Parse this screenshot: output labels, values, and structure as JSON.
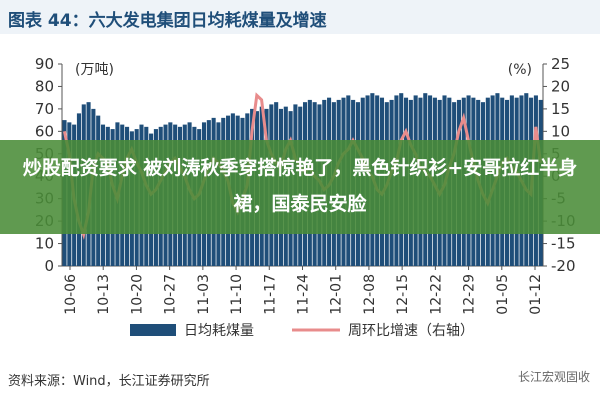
{
  "title": "图表 44：六大发电集团日均耗煤量及增速",
  "source": "资料来源：Wind，长江证券研究所",
  "watermark": "长江宏观固收",
  "overlay_text": "炒股配资要求 被刘涛秋季穿搭惊艳了，黑色针织衫+安哥拉红半身裙，国泰民安脸",
  "colors": {
    "bar": "#1f4e79",
    "line": "#e88c8c",
    "overlay": "#4a8c38"
  },
  "chart_data": {
    "type": "bar",
    "title": "",
    "y_left": {
      "unit": "(万吨)",
      "ylim": [
        0,
        90
      ],
      "ticks": [
        0,
        10,
        20,
        30,
        40,
        50,
        60,
        70,
        80,
        90
      ]
    },
    "y_right": {
      "unit": "(%)",
      "ylim": [
        -20,
        25
      ],
      "ticks": [
        -20,
        -15,
        -10,
        -5,
        0,
        5,
        10,
        15,
        20,
        25
      ]
    },
    "x_tick_labels": [
      "10-06",
      "10-13",
      "10-20",
      "10-27",
      "11-03",
      "11-10",
      "11-17",
      "11-24",
      "12-01",
      "12-08",
      "12-15",
      "12-22",
      "12-29",
      "01-05",
      "01-12"
    ],
    "series": [
      {
        "name": "日均耗煤量",
        "type": "bar",
        "axis": "left",
        "values": [
          65,
          64,
          63,
          68,
          72,
          73,
          70,
          67,
          63,
          62,
          61,
          64,
          63,
          62,
          60,
          61,
          63,
          62,
          59,
          61,
          62,
          63,
          64,
          63,
          62,
          63,
          64,
          62,
          61,
          64,
          65,
          66,
          64,
          66,
          67,
          68,
          67,
          66,
          68,
          70,
          69,
          71,
          70,
          72,
          73,
          70,
          71,
          69,
          72,
          71,
          73,
          74,
          73,
          72,
          74,
          75,
          73,
          74,
          75,
          76,
          74,
          73,
          75,
          76,
          77,
          76,
          75,
          73,
          74,
          76,
          77,
          75,
          74,
          76,
          75,
          77,
          76,
          75,
          74,
          76,
          75,
          73,
          74,
          75,
          76,
          75,
          74,
          73,
          75,
          76,
          77,
          75,
          74,
          76,
          75,
          76,
          77,
          75,
          76,
          74
        ]
      },
      {
        "name": "周环比增速（右轴）",
        "type": "line",
        "axis": "right",
        "values": [
          10,
          5,
          -5,
          -10,
          -13,
          -8,
          2,
          5,
          4,
          3,
          -2,
          -5,
          0,
          4,
          6,
          3,
          1,
          -2,
          -4,
          -3,
          -1,
          1,
          3,
          4,
          2,
          0,
          -3,
          -5,
          -4,
          -1,
          2,
          4,
          3,
          1,
          -1,
          -6,
          -8,
          -5,
          -2,
          10,
          18,
          17,
          8,
          5,
          3,
          2,
          6,
          8,
          4,
          2,
          1,
          2,
          0,
          -1,
          -3,
          -2,
          0,
          3,
          5,
          6,
          8,
          6,
          4,
          1,
          0,
          -3,
          -4,
          -2,
          1,
          3,
          8,
          10,
          7,
          5,
          2,
          1,
          0,
          -2,
          -4,
          -2,
          2,
          5,
          10,
          13,
          8,
          3,
          -1,
          -4,
          -6,
          -3,
          0,
          3,
          4,
          2,
          1,
          -1,
          -3,
          -4,
          11,
          3
        ]
      }
    ],
    "legend": {
      "position": "bottom",
      "entries": [
        "日均耗煤量",
        "周环比增速（右轴）"
      ]
    }
  }
}
